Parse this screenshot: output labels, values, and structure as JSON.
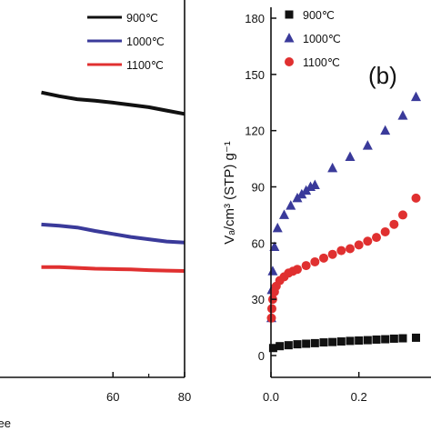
{
  "chart_data": [
    {
      "type": "line",
      "panel": "a",
      "xlabel": "ee",
      "xlim": [
        40,
        80
      ],
      "x_ticks": [
        60,
        80
      ],
      "ylim": [
        0,
        1
      ],
      "series": [
        {
          "name": "900℃",
          "color": "#111111",
          "x": [
            40,
            45,
            50,
            55,
            60,
            65,
            70,
            75,
            80
          ],
          "y": [
            0.755,
            0.745,
            0.737,
            0.733,
            0.728,
            0.722,
            0.716,
            0.707,
            0.698
          ]
        },
        {
          "name": "1000℃",
          "color": "#3a3a9a",
          "x": [
            40,
            45,
            50,
            55,
            60,
            65,
            70,
            75,
            80
          ],
          "y": [
            0.405,
            0.402,
            0.397,
            0.388,
            0.38,
            0.372,
            0.366,
            0.36,
            0.357
          ]
        },
        {
          "name": "1100℃",
          "color": "#e03030",
          "x": [
            40,
            45,
            50,
            55,
            60,
            65,
            70,
            75,
            80
          ],
          "y": [
            0.292,
            0.292,
            0.29,
            0.288,
            0.287,
            0.286,
            0.284,
            0.283,
            0.282
          ]
        }
      ]
    },
    {
      "type": "scatter",
      "panel": "b",
      "label": "(b)",
      "ylabel": "Vₐ/cm³ (STP) g⁻¹",
      "xlim": [
        0,
        0.36
      ],
      "ylim": [
        0,
        180
      ],
      "x_ticks": [
        "0.0",
        "0.2"
      ],
      "y_ticks": [
        0,
        30,
        60,
        90,
        120,
        150,
        180
      ],
      "series": [
        {
          "name": "900℃",
          "color": "#111111",
          "marker": "square",
          "x": [
            0.005,
            0.02,
            0.04,
            0.06,
            0.08,
            0.1,
            0.12,
            0.14,
            0.16,
            0.18,
            0.2,
            0.22,
            0.24,
            0.26,
            0.28,
            0.3,
            0.33
          ],
          "y": [
            4,
            5,
            5.5,
            6,
            6.3,
            6.6,
            7,
            7.2,
            7.5,
            7.8,
            8,
            8.2,
            8.5,
            8.7,
            9,
            9.2,
            9.5
          ]
        },
        {
          "name": "1000℃",
          "color": "#3a3a9a",
          "marker": "triangle",
          "x": [
            0.001,
            0.002,
            0.004,
            0.008,
            0.015,
            0.03,
            0.045,
            0.06,
            0.07,
            0.08,
            0.09,
            0.1,
            0.14,
            0.18,
            0.22,
            0.26,
            0.3,
            0.33
          ],
          "y": [
            20,
            35,
            45,
            58,
            68,
            75,
            80,
            84,
            86,
            88,
            90,
            91,
            100,
            106,
            112,
            120,
            128,
            138
          ]
        },
        {
          "name": "1100℃",
          "color": "#e03030",
          "marker": "circle",
          "x": [
            0.001,
            0.002,
            0.004,
            0.008,
            0.012,
            0.02,
            0.03,
            0.04,
            0.05,
            0.06,
            0.08,
            0.1,
            0.12,
            0.14,
            0.16,
            0.18,
            0.2,
            0.22,
            0.24,
            0.26,
            0.28,
            0.3,
            0.33
          ],
          "y": [
            20,
            25,
            30,
            34,
            37,
            40,
            42,
            44,
            45,
            46,
            48,
            50,
            52,
            54,
            56,
            57,
            59,
            61,
            63,
            66,
            70,
            75,
            84
          ]
        }
      ]
    }
  ]
}
